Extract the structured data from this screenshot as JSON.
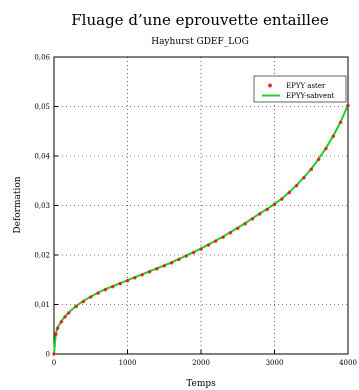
{
  "chart_data": {
    "type": "line",
    "title": "Fluage d’une eprouvette entaillee",
    "subtitle": "Hayhurst GDEF_LOG",
    "xlabel": "Temps",
    "ylabel": "Deformation",
    "xlim": [
      0,
      4000
    ],
    "ylim": [
      0,
      0.06
    ],
    "x_ticks": [
      0,
      1000,
      2000,
      3000,
      4000
    ],
    "x_tick_labels": [
      "0",
      "1000",
      "2000",
      "3000",
      "4000"
    ],
    "y_ticks": [
      0,
      0.01,
      0.02,
      0.03,
      0.04,
      0.05,
      0.06
    ],
    "y_tick_labels": [
      "0",
      "0,01",
      "0,02",
      "0,03",
      "0,04",
      "0,05",
      "0,06"
    ],
    "grid": "dotted",
    "legend_position": "top-right",
    "series": [
      {
        "name": "EPYY aster",
        "marker": "star",
        "color": "#e02020",
        "x": [
          0,
          25,
          50,
          100,
          150,
          200,
          300,
          400,
          500,
          600,
          700,
          800,
          900,
          1000,
          1100,
          1200,
          1300,
          1400,
          1500,
          1600,
          1700,
          1800,
          1900,
          2000,
          2100,
          2200,
          2300,
          2400,
          2500,
          2600,
          2700,
          2800,
          2900,
          3000,
          3100,
          3200,
          3300,
          3400,
          3500,
          3600,
          3700,
          3800,
          3900,
          4000
        ],
        "y": [
          0,
          0.004,
          0.0052,
          0.0065,
          0.0075,
          0.0083,
          0.0096,
          0.0106,
          0.0115,
          0.0123,
          0.013,
          0.0136,
          0.0142,
          0.0148,
          0.0154,
          0.016,
          0.0166,
          0.0172,
          0.0178,
          0.0184,
          0.0191,
          0.0198,
          0.0205,
          0.0212,
          0.022,
          0.0228,
          0.0236,
          0.0245,
          0.0254,
          0.0263,
          0.0273,
          0.0283,
          0.0292,
          0.0302,
          0.0313,
          0.0326,
          0.034,
          0.0356,
          0.0373,
          0.0393,
          0.0415,
          0.044,
          0.0468,
          0.0502
        ]
      },
      {
        "name": "EPYY-sabvent",
        "marker": "line",
        "color": "#20d020",
        "x": [
          0,
          25,
          50,
          100,
          150,
          200,
          300,
          400,
          500,
          600,
          700,
          800,
          900,
          1000,
          1100,
          1200,
          1300,
          1400,
          1500,
          1600,
          1700,
          1800,
          1900,
          2000,
          2100,
          2200,
          2300,
          2400,
          2500,
          2600,
          2700,
          2800,
          2900,
          3000,
          3100,
          3200,
          3300,
          3400,
          3500,
          3600,
          3700,
          3800,
          3900,
          4000
        ],
        "y": [
          0,
          0.0042,
          0.0054,
          0.0066,
          0.0076,
          0.0084,
          0.0097,
          0.0107,
          0.0116,
          0.0124,
          0.0131,
          0.0137,
          0.0143,
          0.0149,
          0.0155,
          0.0161,
          0.0167,
          0.0173,
          0.0179,
          0.0185,
          0.0192,
          0.0199,
          0.0206,
          0.0213,
          0.0221,
          0.0229,
          0.0237,
          0.0246,
          0.0255,
          0.0264,
          0.0274,
          0.0284,
          0.0293,
          0.0303,
          0.0314,
          0.0327,
          0.0341,
          0.0357,
          0.0374,
          0.0394,
          0.0416,
          0.0441,
          0.0469,
          0.0503
        ]
      }
    ]
  }
}
